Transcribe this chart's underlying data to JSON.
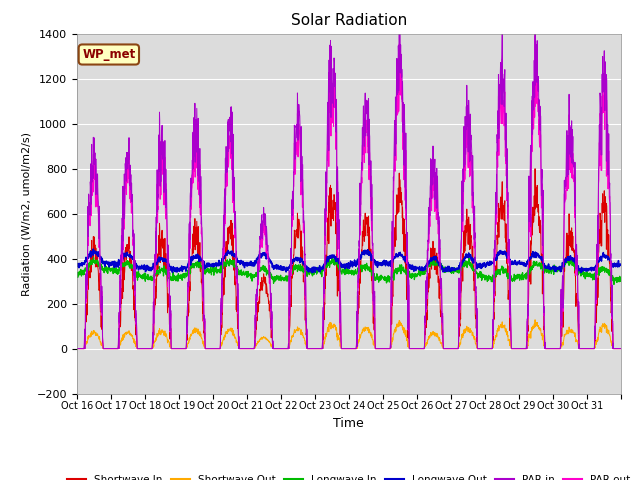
{
  "title": "Solar Radiation",
  "xlabel": "Time",
  "ylabel": "Radiation (W/m2, umol/m2/s)",
  "ylim": [
    -200,
    1400
  ],
  "background_color": "#dcdcdc",
  "figure_color": "#ffffff",
  "annotation_text": "WP_met",
  "annotation_facecolor": "#ffffc0",
  "annotation_edgecolor": "#8B4513",
  "series_colors": {
    "sw_in": "#dd0000",
    "sw_out": "#ffaa00",
    "lw_in": "#00bb00",
    "lw_out": "#0000cc",
    "par_in": "#aa00cc",
    "par_out": "#ff00cc"
  },
  "legend_labels": [
    "Shortwave In",
    "Shortwave Out",
    "Longwave In",
    "Longwave Out",
    "PAR in",
    "PAR out"
  ],
  "xtick_labels": [
    "Oct 16",
    "Oct 17",
    "Oct 18",
    "Oct 19",
    "Oct 20",
    "Oct 21",
    "Oct 22",
    "Oct 23",
    "Oct 24",
    "Oct 25",
    "Oct 26",
    "Oct 27",
    "Oct 28",
    "Oct 29",
    "Oct 30",
    "Oct 31"
  ],
  "n_days": 16,
  "pts_per_day": 144,
  "par_in_peaks": [
    840,
    840,
    920,
    980,
    980,
    580,
    1000,
    1280,
    1060,
    1340,
    820,
    1060,
    1230,
    1270,
    960,
    1170
  ],
  "sw_in_ratio": 0.53,
  "sw_out_ratio": 0.085,
  "par_out_ratio": 0.92
}
